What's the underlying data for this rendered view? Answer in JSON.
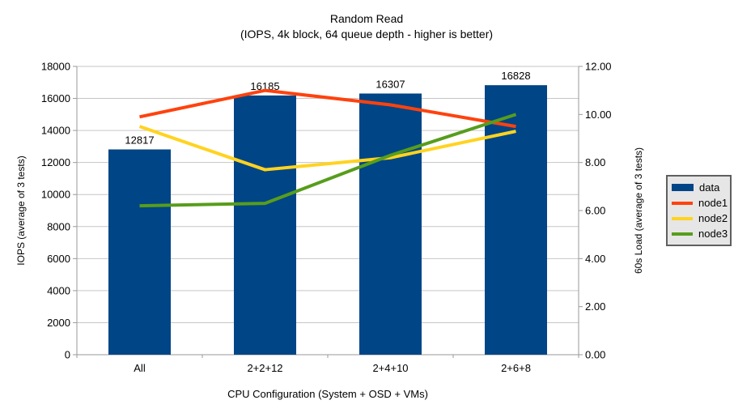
{
  "chart_data": {
    "type": "bar+line combo",
    "title": "Random Read",
    "subtitle": "(IOPS, 4k block, 64 queue depth - higher is better)",
    "categories": [
      "All",
      "2+2+12",
      "2+4+10",
      "2+6+8"
    ],
    "x_axis": {
      "label": "CPU Configuration (System + OSD + VMs)"
    },
    "left_axis": {
      "label": "IOPS (average of 3 tests)",
      "min": 0,
      "max": 18000,
      "step": 2000,
      "ticks": [
        "0",
        "2000",
        "4000",
        "6000",
        "8000",
        "10000",
        "12000",
        "14000",
        "16000",
        "18000"
      ]
    },
    "right_axis": {
      "label": "60s Load (average of 3 tests)",
      "min": 0,
      "max": 12,
      "step": 2,
      "ticks": [
        "0.00",
        "2.00",
        "4.00",
        "6.00",
        "8.00",
        "10.00",
        "12.00"
      ]
    },
    "bar_series": {
      "name": "data",
      "color": "#004586",
      "value_axis": "left",
      "values": [
        12817,
        16185,
        16307,
        16828
      ],
      "data_labels": [
        "12817",
        "16185",
        "16307",
        "16828"
      ]
    },
    "line_series": [
      {
        "name": "node1",
        "color": "#ff420e",
        "value_axis": "right",
        "values": [
          9.9,
          11.0,
          10.4,
          9.5
        ]
      },
      {
        "name": "node2",
        "color": "#ffd320",
        "value_axis": "right",
        "values": [
          9.5,
          7.7,
          8.2,
          9.3
        ]
      },
      {
        "name": "node3",
        "color": "#579d1c",
        "value_axis": "right",
        "values": [
          6.2,
          6.3,
          8.3,
          10.0
        ]
      }
    ],
    "legend": {
      "position": "right",
      "items": [
        {
          "label": "data",
          "color": "#004586",
          "swatch": "bar"
        },
        {
          "label": "node1",
          "color": "#ff420e",
          "swatch": "line"
        },
        {
          "label": "node2",
          "color": "#ffd320",
          "swatch": "line"
        },
        {
          "label": "node3",
          "color": "#579d1c",
          "swatch": "line"
        }
      ]
    },
    "grid": "horizontal",
    "colors": {
      "gridline": "#c6c6c6",
      "axis": "#9a9a9a",
      "text": "#000000",
      "legend_bg": "#e6e6e6",
      "legend_border": "#5f5f5f",
      "background": "#ffffff"
    }
  }
}
